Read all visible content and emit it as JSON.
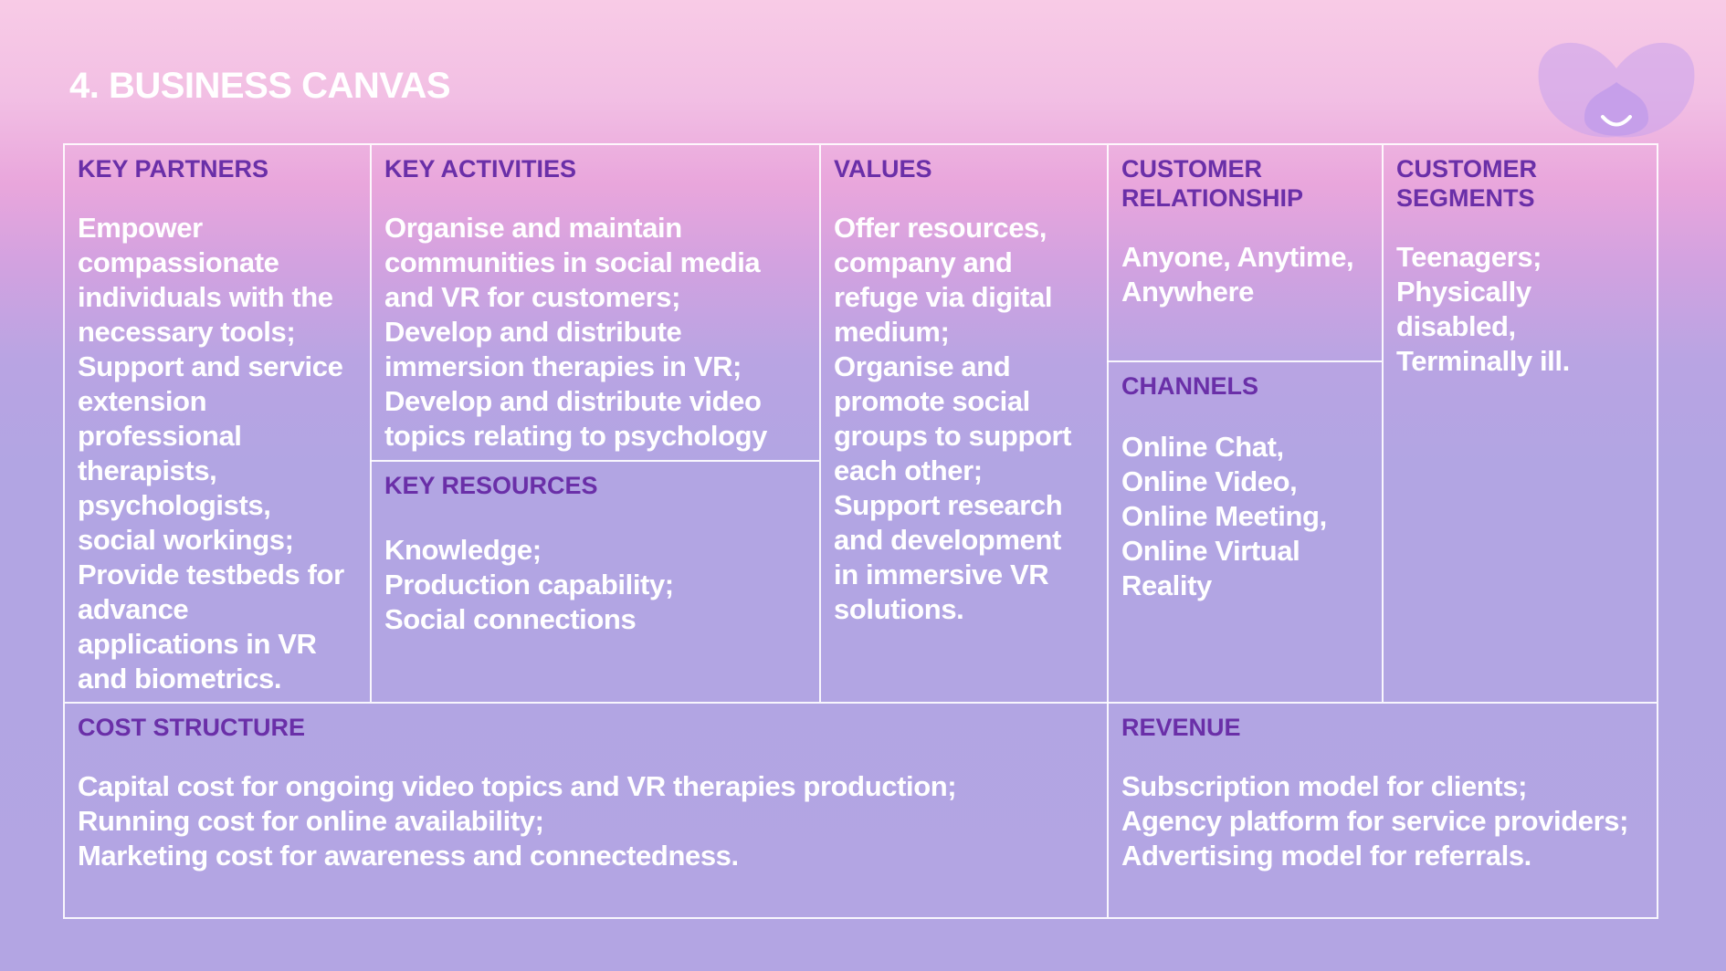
{
  "slide": {
    "title": "4. BUSINESS CANVAS"
  },
  "colors": {
    "heading": "#6a2fa8",
    "body_text": "#ffffff",
    "grid_lines": "#ffffff",
    "logo": "#c9a3ec"
  },
  "logo": {
    "icon": "lotus-smile-icon"
  },
  "canvas": {
    "key_partners": {
      "heading": "KEY PARTNERS",
      "lines": [
        "Empower",
        "compassionate",
        "individuals with the",
        "necessary tools;",
        "Support and service",
        "extension",
        "professional",
        "therapists,",
        "psychologists,",
        "social workings;",
        "Provide testbeds for",
        "advance",
        "applications in VR",
        "and biometrics."
      ]
    },
    "key_activities": {
      "heading": "KEY ACTIVITIES",
      "lines": [
        "Organise and maintain",
        "communities in social media",
        "and VR for customers;",
        "Develop and distribute",
        "immersion therapies in VR;",
        "Develop and distribute video",
        "topics relating to psychology"
      ]
    },
    "key_resources": {
      "heading": "KEY RESOURCES",
      "lines": [
        "Knowledge;",
        "Production capability;",
        "Social connections"
      ]
    },
    "values": {
      "heading": "VALUES",
      "lines": [
        "Offer resources,",
        "company and",
        "refuge via digital",
        "medium;",
        "Organise and",
        "promote social",
        "groups to support",
        "each other;",
        "Support research",
        "and development",
        "in immersive VR",
        "solutions."
      ]
    },
    "customer_relationship": {
      "heading_lines": [
        "CUSTOMER",
        "RELATIONSHIP"
      ],
      "lines": [
        "Anyone, Anytime,",
        "Anywhere"
      ]
    },
    "channels": {
      "heading": "CHANNELS",
      "lines": [
        "Online Chat,",
        "Online Video,",
        "Online Meeting,",
        "Online Virtual",
        "Reality"
      ]
    },
    "customer_segments": {
      "heading_lines": [
        "CUSTOMER",
        "SEGMENTS"
      ],
      "lines": [
        "Teenagers;",
        "Physically",
        "disabled,",
        "Terminally ill."
      ]
    },
    "cost_structure": {
      "heading": "COST STRUCTURE",
      "lines": [
        "Capital cost for ongoing video topics and VR therapies production;",
        "Running cost for online availability;",
        "Marketing cost for awareness and connectedness."
      ]
    },
    "revenue": {
      "heading": "REVENUE",
      "lines": [
        "Subscription model for clients;",
        "Agency platform for service providers;",
        "Advertising model for referrals."
      ]
    }
  }
}
